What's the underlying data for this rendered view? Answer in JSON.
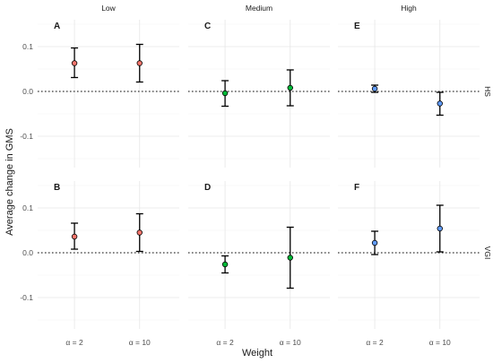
{
  "chart_data": {
    "type": "scatter",
    "subtype": "faceted point-range (estimate with error bars)",
    "xlabel": "Weight",
    "ylabel": "Average change in GMS",
    "x_categories": [
      "α = 2",
      "α = 10"
    ],
    "y_ticks": [
      -0.1,
      0.0,
      0.1
    ],
    "y_tick_labels": [
      "-0.1",
      "0.0",
      "0.1"
    ],
    "ylim": [
      -0.17,
      0.16
    ],
    "grid": true,
    "reference_line": {
      "y": 0,
      "style": "dotted"
    },
    "columns": [
      "Low",
      "Medium",
      "High"
    ],
    "rows": [
      "HS",
      "VGI"
    ],
    "colors": {
      "Low": "#F8766D",
      "Medium": "#00BA38",
      "High": "#619CFF"
    },
    "panels": [
      {
        "label": "A",
        "column": "Low",
        "row": "HS",
        "points": [
          {
            "x": "α = 2",
            "y": 0.063,
            "lower": 0.031,
            "upper": 0.097
          },
          {
            "x": "α = 10",
            "y": 0.063,
            "lower": 0.021,
            "upper": 0.105
          }
        ]
      },
      {
        "label": "C",
        "column": "Medium",
        "row": "HS",
        "points": [
          {
            "x": "α = 2",
            "y": -0.004,
            "lower": -0.033,
            "upper": 0.024
          },
          {
            "x": "α = 10",
            "y": 0.008,
            "lower": -0.032,
            "upper": 0.048
          }
        ]
      },
      {
        "label": "E",
        "column": "High",
        "row": "HS",
        "points": [
          {
            "x": "α = 2",
            "y": 0.006,
            "lower": -0.002,
            "upper": 0.014
          },
          {
            "x": "α = 10",
            "y": -0.027,
            "lower": -0.053,
            "upper": -0.002
          }
        ]
      },
      {
        "label": "B",
        "column": "Low",
        "row": "VGI",
        "points": [
          {
            "x": "α = 2",
            "y": 0.036,
            "lower": 0.008,
            "upper": 0.066
          },
          {
            "x": "α = 10",
            "y": 0.045,
            "lower": 0.003,
            "upper": 0.087
          }
        ]
      },
      {
        "label": "D",
        "column": "Medium",
        "row": "VGI",
        "points": [
          {
            "x": "α = 2",
            "y": -0.026,
            "lower": -0.045,
            "upper": -0.007
          },
          {
            "x": "α = 10",
            "y": -0.011,
            "lower": -0.079,
            "upper": 0.057
          }
        ]
      },
      {
        "label": "F",
        "column": "High",
        "row": "VGI",
        "points": [
          {
            "x": "α = 2",
            "y": 0.022,
            "lower": -0.004,
            "upper": 0.048
          },
          {
            "x": "α = 10",
            "y": 0.054,
            "lower": 0.002,
            "upper": 0.106
          }
        ]
      }
    ]
  }
}
